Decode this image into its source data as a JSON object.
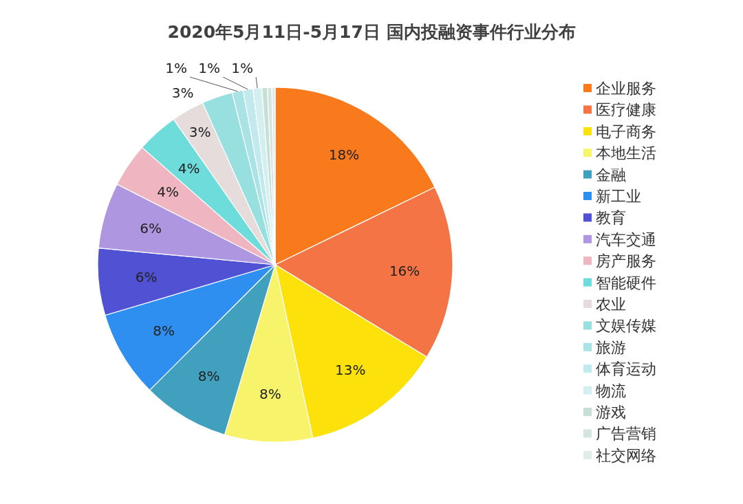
{
  "chart_data": {
    "type": "pie",
    "title": "2020年5月11日-5月17日 国内投融资事件行业分布",
    "legend": "right",
    "categories": [
      "企业服务",
      "医疗健康",
      "电子商务",
      "本地生活",
      "金融",
      "新工业",
      "教育",
      "汽车交通",
      "房产服务",
      "智能硬件",
      "农业",
      "文娱传媒",
      "旅游",
      "体育运动",
      "物流",
      "游戏",
      "广告营销",
      "社交网络"
    ],
    "values": [
      17.8,
      15.9,
      12.9,
      8.0,
      7.9,
      7.9,
      6.1,
      6.0,
      4.0,
      3.8,
      3.0,
      2.8,
      1.0,
      0.9,
      0.8,
      0.5,
      0.4,
      0.3
    ],
    "value_labels": [
      "18%",
      "16%",
      "13%",
      "8%",
      "8%",
      "8%",
      "6%",
      "6%",
      "4%",
      "4%",
      "3%",
      "3%",
      "1%",
      "1%",
      "1%",
      null,
      null,
      null
    ],
    "colors": [
      "#f97a1c",
      "#f57446",
      "#fde10a",
      "#f7f46c",
      "#41a0be",
      "#2f8ff0",
      "#5152d3",
      "#ae96e0",
      "#efb5c0",
      "#6fdcdc",
      "#e5dcdb",
      "#98e0e0",
      "#a9e3e5",
      "#c2eaee",
      "#d4eff0",
      "#c6e0d6",
      "#d3e6de",
      "#dfece8"
    ]
  }
}
